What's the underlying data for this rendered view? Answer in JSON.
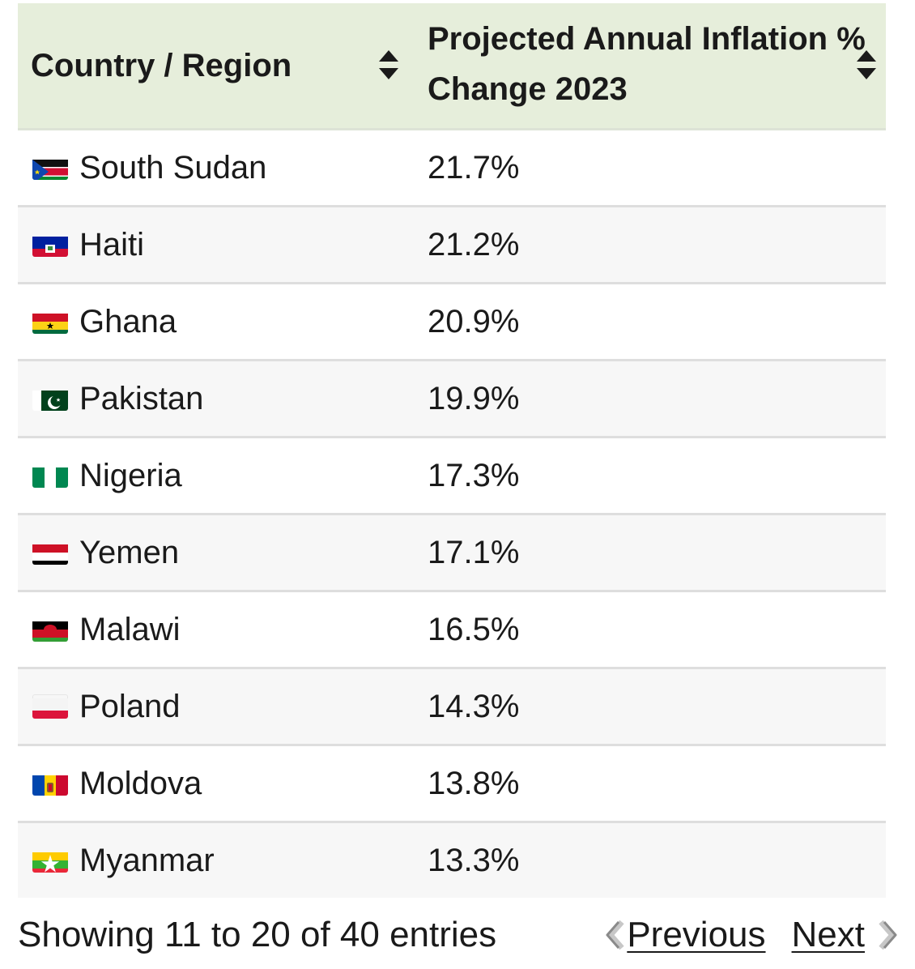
{
  "table": {
    "headers": {
      "country": "Country / Region",
      "inflation_line1": "Projected Annual Inflation %",
      "inflation_line2": "Change 2023"
    },
    "rows": [
      {
        "country": "South Sudan",
        "value": "21.7%",
        "flag": "south-sudan-flag-icon"
      },
      {
        "country": "Haiti",
        "value": "21.2%",
        "flag": "haiti-flag-icon"
      },
      {
        "country": "Ghana",
        "value": "20.9%",
        "flag": "ghana-flag-icon"
      },
      {
        "country": "Pakistan",
        "value": "19.9%",
        "flag": "pakistan-flag-icon"
      },
      {
        "country": "Nigeria",
        "value": "17.3%",
        "flag": "nigeria-flag-icon"
      },
      {
        "country": "Yemen",
        "value": "17.1%",
        "flag": "yemen-flag-icon"
      },
      {
        "country": "Malawi",
        "value": "16.5%",
        "flag": "malawi-flag-icon"
      },
      {
        "country": "Poland",
        "value": "14.3%",
        "flag": "poland-flag-icon"
      },
      {
        "country": "Moldova",
        "value": "13.8%",
        "flag": "moldova-flag-icon"
      },
      {
        "country": "Myanmar",
        "value": "13.3%",
        "flag": "myanmar-flag-icon"
      }
    ]
  },
  "footer": {
    "info": "Showing 11 to 20 of 40 entries",
    "previous": "Previous",
    "next": "Next"
  },
  "colors": {
    "header_bg": "#e6eedb",
    "row_alt_bg": "#f7f7f7",
    "border": "#dedede"
  }
}
